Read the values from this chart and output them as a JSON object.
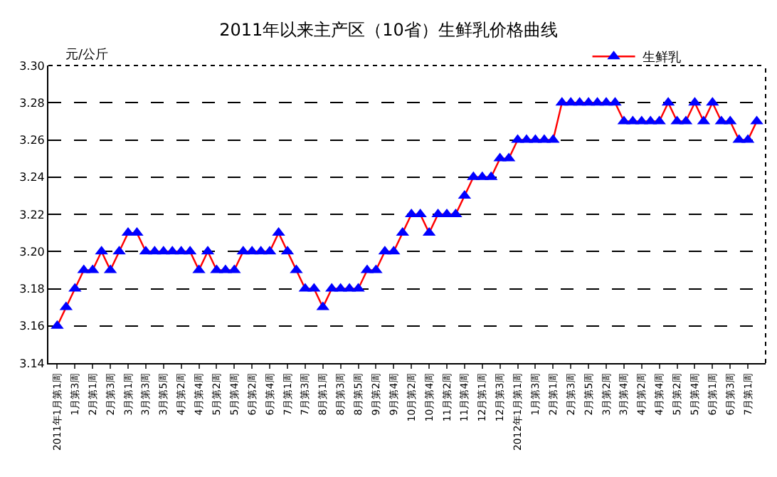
{
  "chart_data": {
    "type": "line",
    "title": "2011年以来主产区（10省）生鲜乳价格曲线",
    "ylabel": "元/公斤",
    "categories": [
      "2011年1月第1周",
      null,
      "1月第3周",
      null,
      "2月第1周",
      null,
      "2月第3周",
      null,
      "3月第1周",
      null,
      "3月第3周",
      null,
      "3月第5周",
      null,
      "4月第2周",
      null,
      "4月第4周",
      null,
      "5月第2周",
      null,
      "5月第4周",
      null,
      "6月第2周",
      null,
      "6月第4周",
      null,
      "7月第1周",
      null,
      "7月第3周",
      null,
      "8月第1周",
      null,
      "8月第3周",
      null,
      "8月第5周",
      null,
      "9月第2周",
      null,
      "9月第4周",
      null,
      "10月第2周",
      null,
      "10月第4周",
      null,
      "11月第2周",
      null,
      "11月第4周",
      null,
      "12月第1周",
      null,
      "12月第3周",
      null,
      "2012年1月第1周",
      null,
      "1月第3周",
      null,
      "2月第1周",
      null,
      "2月第3周",
      null,
      "2月第5周",
      null,
      "3月第2周",
      null,
      "3月第4周",
      null,
      "4月第2周",
      null,
      "4月第4周",
      null,
      "5月第2周",
      null,
      "5月第4周",
      null,
      "6月第1周",
      null,
      "6月第3周",
      null,
      "7月第1周",
      null
    ],
    "series": [
      {
        "name": "生鲜乳",
        "color": "#ff0000",
        "colors": [
          "#0000ff",
          "#0000ff",
          "#0000ff",
          "#0000ff",
          "#0000ff",
          "#0000ff",
          "#0000ff",
          "#0000ff",
          "#0000ff",
          "#0000ff",
          "#0000ff",
          "#0000ff",
          "#0000ff",
          "#0000ff",
          "#0000ff",
          "#0000ff",
          "#0000ff",
          "#0000ff",
          "#0000ff",
          "#0000ff",
          "#0000ff",
          "#0000ff",
          "#0000ff",
          "#0000ff",
          "#0000ff",
          "#0000ff",
          "#0000ff",
          "#0000ff",
          "#0000ff",
          "#0000ff",
          "#0000ff",
          "#0000ff",
          "#0000ff",
          "#0000ff",
          "#0000ff",
          "#0000ff",
          "#0000ff",
          "#0000ff",
          "#0000ff",
          "#0000ff",
          "#0000ff",
          "#0000ff",
          "#0000ff",
          "#0000ff",
          "#0000ff",
          "#0000ff",
          "#0000ff",
          "#0000ff",
          "#0000ff",
          "#0000ff",
          "#0000ff",
          "#0000ff",
          "#0000ff",
          "#0000ff",
          "#0000ff",
          "#0000ff",
          "#0000ff",
          "#0000ff",
          "#0000ff",
          "#0000ff",
          "#0000ff",
          "#0000ff",
          "#0000ff",
          "#0000ff",
          "#0000ff",
          "#0000ff",
          "#0000ff",
          "#0000ff",
          "#0000ff",
          "#0000ff",
          "#0000ff",
          "#0000ff",
          "#0000ff",
          "#0000ff",
          "#0000ff",
          "#0000ff",
          "#0000ff",
          "#0000ff",
          "#0000ff",
          "#0000ff"
        ],
        "values": [
          3.16,
          3.17,
          3.18,
          3.19,
          3.19,
          3.2,
          3.19,
          3.2,
          3.21,
          3.21,
          3.2,
          3.2,
          3.2,
          3.2,
          3.2,
          3.2,
          3.19,
          3.2,
          3.19,
          3.19,
          3.19,
          3.2,
          3.2,
          3.2,
          3.2,
          3.21,
          3.2,
          3.19,
          3.18,
          3.18,
          3.17,
          3.18,
          3.18,
          3.18,
          3.18,
          3.19,
          3.19,
          3.2,
          3.2,
          3.21,
          3.22,
          3.22,
          3.21,
          3.22,
          3.22,
          3.22,
          3.23,
          3.24,
          3.24,
          3.24,
          3.25,
          3.25,
          3.26,
          3.26,
          3.26,
          3.26,
          3.26,
          3.28,
          3.28,
          3.28,
          3.28,
          3.28,
          3.28,
          3.28,
          3.27,
          3.27,
          3.27,
          3.27,
          3.27,
          3.28,
          3.27,
          3.27,
          3.28,
          3.27,
          3.28,
          3.27,
          3.27,
          3.26,
          3.26,
          3.27
        ]
      }
    ],
    "ylim": [
      3.14,
      3.3
    ],
    "yticks": [
      3.14,
      3.16,
      3.18,
      {
        "value": 3.2,
        "label": "3.20"
      },
      3.22,
      3.24,
      3.26,
      3.28,
      {
        "value": 3.3,
        "label": "3.30"
      }
    ],
    "grid": "y",
    "legend": "top right",
    "marker": "triangle",
    "line_style": "solid"
  }
}
